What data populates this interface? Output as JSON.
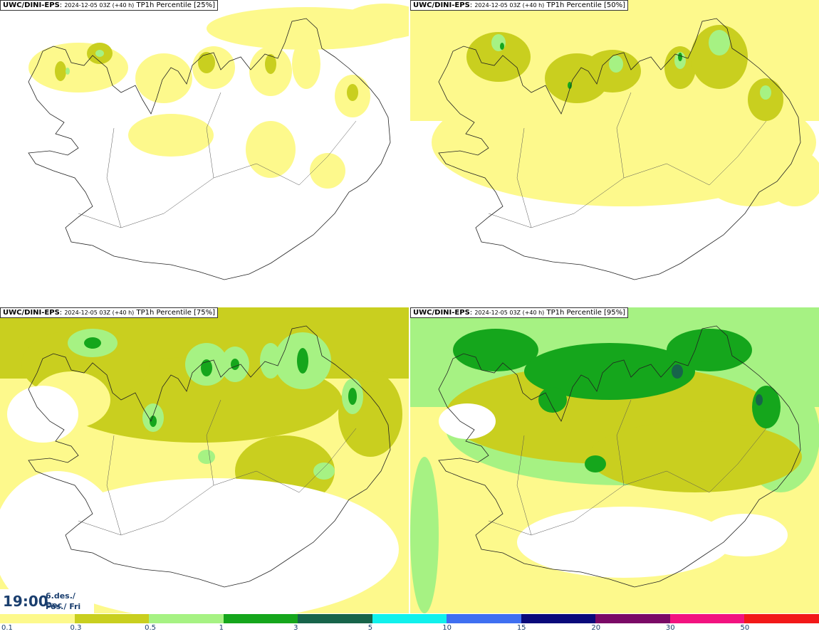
{
  "panels": [
    {
      "model": "UWC/DINI-EPS",
      "run": "2024-12-05 03Z (+40 h)",
      "param": "TP1h Percentile [25%]"
    },
    {
      "model": "UWC/DINI-EPS",
      "run": "2024-12-05 03Z (+40 h)",
      "param": "TP1h Percentile [50%]"
    },
    {
      "model": "UWC/DINI-EPS",
      "run": "2024-12-05 03Z (+40 h)",
      "param": "TP1h Percentile [75%]"
    },
    {
      "model": "UWC/DINI-EPS",
      "run": "2024-12-05 03Z (+40 h)",
      "param": "TP1h Percentile [95%]"
    }
  ],
  "valid_time": {
    "hour": "19:00",
    "date": "6.des./ Dec",
    "day": "Fös./ Fri"
  },
  "legend": {
    "ticks": [
      "0.1",
      "0.3",
      "0.5",
      "1",
      "3",
      "5",
      "10",
      "15",
      "20",
      "30",
      "50"
    ],
    "colors": [
      "#fdf98c",
      "#c9cf1f",
      "#a6f283",
      "#15a61c",
      "#17644a",
      "#11f1ec",
      "#3f6ff1",
      "#0a0a7a",
      "#7a0a66",
      "#f2127f",
      "#f21919"
    ]
  },
  "map_colors": {
    "land_outline": "#222222",
    "level_1": "#fdf98c",
    "level_2": "#c9cf1f",
    "level_3": "#a6f283",
    "level_4": "#15a61c",
    "level_5": "#17644a"
  }
}
